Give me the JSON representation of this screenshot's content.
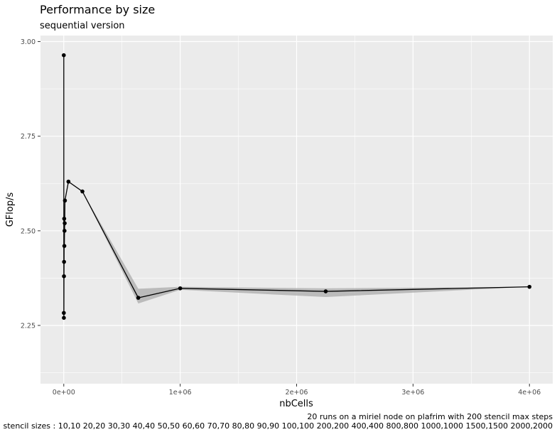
{
  "chart_data": {
    "type": "line",
    "title": "Performance by size",
    "subtitle": "sequential version",
    "xlabel": "nbCells",
    "ylabel": "GFlop/s",
    "xlim": [
      -200000,
      4200000
    ],
    "ylim": [
      2.096,
      3.016
    ],
    "x_ticks": [
      0,
      1000000,
      2000000,
      3000000,
      4000000
    ],
    "x_tick_labels": [
      "0e+00",
      "1e+06",
      "2e+06",
      "3e+06",
      "4e+06"
    ],
    "y_ticks": [
      2.25,
      2.5,
      2.75,
      3.0
    ],
    "y_tick_labels": [
      "2.25",
      "2.50",
      "2.75",
      "3.00"
    ],
    "grid": true,
    "points": [
      {
        "x": 100,
        "y": 2.964,
        "lo": 2.964,
        "hi": 2.964
      },
      {
        "x": 400,
        "y": 2.283,
        "lo": 2.283,
        "hi": 2.283
      },
      {
        "x": 900,
        "y": 2.27,
        "lo": 2.27,
        "hi": 2.27
      },
      {
        "x": 1600,
        "y": 2.38,
        "lo": 2.38,
        "hi": 2.38
      },
      {
        "x": 2500,
        "y": 2.418,
        "lo": 2.418,
        "hi": 2.418
      },
      {
        "x": 3600,
        "y": 2.532,
        "lo": 2.532,
        "hi": 2.532
      },
      {
        "x": 4900,
        "y": 2.46,
        "lo": 2.46,
        "hi": 2.46
      },
      {
        "x": 6400,
        "y": 2.5,
        "lo": 2.5,
        "hi": 2.5
      },
      {
        "x": 8100,
        "y": 2.52,
        "lo": 2.52,
        "hi": 2.52
      },
      {
        "x": 10000,
        "y": 2.58,
        "lo": 2.58,
        "hi": 2.58
      },
      {
        "x": 40000,
        "y": 2.63,
        "lo": 2.63,
        "hi": 2.63
      },
      {
        "x": 160000,
        "y": 2.604,
        "lo": 2.604,
        "hi": 2.604
      },
      {
        "x": 640000,
        "y": 2.323,
        "lo": 2.308,
        "hi": 2.347
      },
      {
        "x": 1000000,
        "y": 2.348,
        "lo": 2.344,
        "hi": 2.352
      },
      {
        "x": 2250000,
        "y": 2.34,
        "lo": 2.325,
        "hi": 2.348
      },
      {
        "x": 4000000,
        "y": 2.352,
        "lo": 2.352,
        "hi": 2.352
      }
    ],
    "caption_lines": [
      "20 runs on a miriel node on plafrim with 200 stencil max steps",
      "stencil sizes : 10,10 20,20 30,30 40,40 50,50 60,60 70,70 80,80 90,90 100,100 200,200 400,400 800,800 1000,1000 1500,1500 2000,2000"
    ],
    "colors": {
      "panel": "#ebebeb",
      "grid_major": "#ffffff",
      "line": "#000000",
      "ribbon": "#b3b3b3"
    }
  }
}
